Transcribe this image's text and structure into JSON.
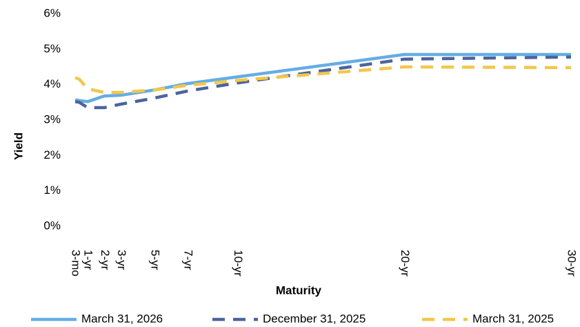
{
  "chart_data": {
    "type": "line",
    "x_label": "Maturity",
    "y_label": "Yield",
    "x": [
      0.25,
      0.5,
      1,
      2,
      3,
      5,
      7,
      10,
      20,
      30
    ],
    "xlim": [
      0,
      30
    ],
    "xticks": [
      {
        "value": 0.25,
        "label": "3-mo"
      },
      {
        "value": 1,
        "label": "1-yr"
      },
      {
        "value": 2,
        "label": "2-yr"
      },
      {
        "value": 3,
        "label": "3-yr"
      },
      {
        "value": 5,
        "label": "5-yr"
      },
      {
        "value": 7,
        "label": "7-yr"
      },
      {
        "value": 10,
        "label": "10-yr"
      },
      {
        "value": 20,
        "label": "20-yr"
      },
      {
        "value": 30,
        "label": "30-yr"
      }
    ],
    "ylim": [
      0,
      6
    ],
    "yticks": [
      {
        "value": 0,
        "label": "0%"
      },
      {
        "value": 1,
        "label": "1%"
      },
      {
        "value": 2,
        "label": "2%"
      },
      {
        "value": 3,
        "label": "3%"
      },
      {
        "value": 4,
        "label": "4%"
      },
      {
        "value": 5,
        "label": "5%"
      },
      {
        "value": 6,
        "label": "6%"
      }
    ],
    "grid": false,
    "legend": "bottom",
    "series": [
      {
        "name": "March 31, 2026",
        "color": "#65ade4",
        "dash": "solid",
        "values": [
          3.57,
          3.55,
          3.52,
          3.68,
          3.7,
          3.85,
          4.03,
          4.22,
          4.85,
          4.85
        ]
      },
      {
        "name": "December 31, 2025",
        "color": "#4c639e",
        "dash": "dashed",
        "values": [
          3.52,
          3.5,
          3.35,
          3.35,
          3.45,
          3.62,
          3.82,
          4.05,
          4.72,
          4.78
        ]
      },
      {
        "name": "March 31, 2025",
        "color": "#f2c74a",
        "dash": "dashed",
        "values": [
          4.2,
          4.15,
          3.88,
          3.78,
          3.78,
          3.85,
          3.98,
          4.12,
          4.5,
          4.48
        ]
      }
    ]
  }
}
